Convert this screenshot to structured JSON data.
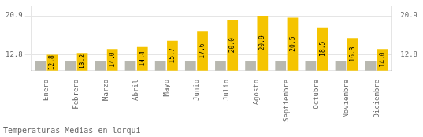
{
  "chart_data": {
    "type": "bar",
    "title": "Temperaturas Medias en lorqui",
    "categories": [
      "Enero",
      "Febrero",
      "Marzo",
      "Abril",
      "Mayo",
      "Junio",
      "Julio",
      "Agosto",
      "Septiembre",
      "Octubre",
      "Noviembre",
      "Diciembre"
    ],
    "series": [
      {
        "color": "#B8B8B0",
        "values": [
          11.5,
          11.5,
          11.5,
          11.5,
          11.5,
          11.5,
          11.5,
          11.5,
          11.5,
          11.5,
          11.5,
          11.5
        ]
      },
      {
        "color": "#F5C400",
        "values": [
          12.8,
          13.2,
          14.0,
          14.4,
          15.7,
          17.6,
          20.0,
          20.9,
          20.5,
          18.5,
          16.3,
          14.0
        ],
        "value_labels": [
          "12.8",
          "13.2",
          "14.0",
          "14.4",
          "15.7",
          "17.6",
          "20.0",
          "20.9",
          "20.5",
          "18.5",
          "16.3",
          "14.0"
        ],
        "data_labels": true
      }
    ],
    "ylim": [
      9.5,
      22.8
    ],
    "yticks": [
      12.8,
      20.9
    ],
    "y2lim": [
      9.5,
      22.8
    ],
    "y2ticks": [
      12.8,
      20.9
    ],
    "grid": true
  }
}
